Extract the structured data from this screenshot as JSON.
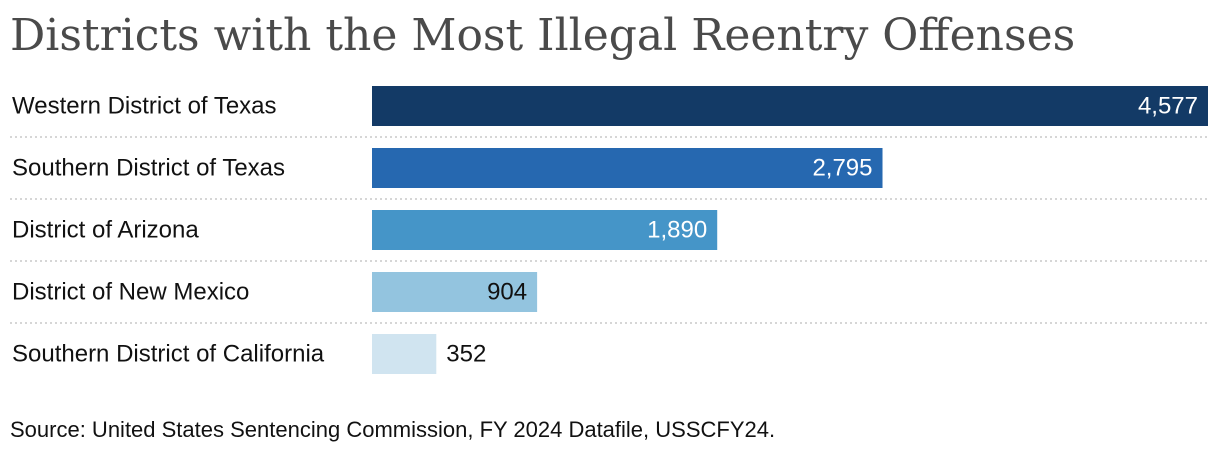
{
  "chart_data": {
    "type": "bar",
    "orientation": "horizontal",
    "title": "Districts with the Most Illegal Reentry Offenses",
    "categories": [
      "Western District of Texas",
      "Southern District of Texas",
      "District of Arizona",
      "District of New Mexico",
      "Southern District of California"
    ],
    "values": [
      4577,
      2795,
      1890,
      904,
      352
    ],
    "value_labels": [
      "4,577",
      "2,795",
      "1,890",
      "904",
      "352"
    ],
    "bar_colors": [
      "#133a66",
      "#2668b0",
      "#4595c8",
      "#93c4df",
      "#d0e4f0"
    ],
    "value_label_colors": [
      "#ffffff",
      "#ffffff",
      "#ffffff",
      "#111111",
      "#111111"
    ],
    "xlim": [
      0,
      4577
    ],
    "xlabel": "",
    "ylabel": "",
    "grid": false,
    "legend": "none"
  },
  "source": "Source: United States Sentencing Commission, FY 2024 Datafile, USSCFY24."
}
